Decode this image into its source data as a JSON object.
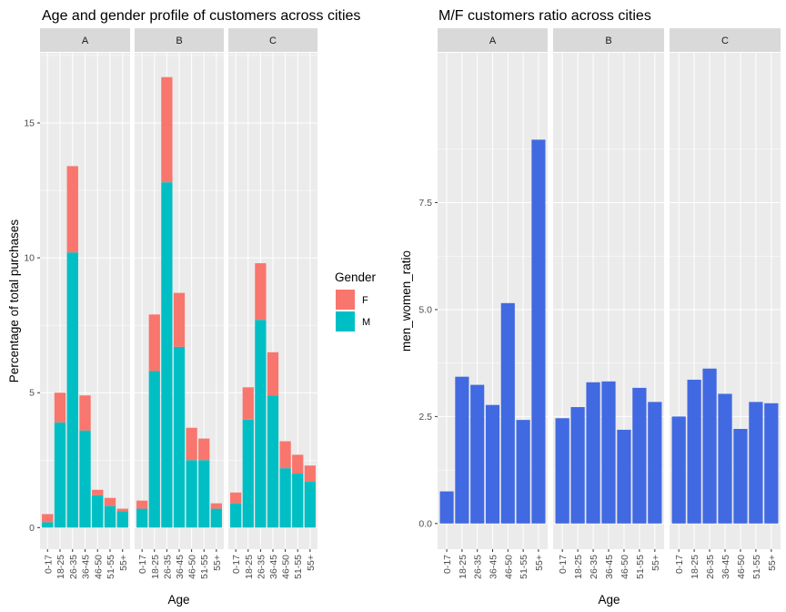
{
  "colors": {
    "female": "#F8766D",
    "male": "#00BFC4",
    "ratio": "#4169E1",
    "panel_bg": "#EBEBEB",
    "strip_bg": "#D9D9D9",
    "grid": "#FFFFFF"
  },
  "chart_data": [
    {
      "type": "bar",
      "stacked": true,
      "title": "Age and gender profile of customers across cities",
      "xlabel": "Age",
      "ylabel": "Percentage of total purchases",
      "ylim": [
        -0.8,
        17.6
      ],
      "yticks": [
        0,
        5,
        10,
        15
      ],
      "ytick_labels": [
        "0",
        "5",
        "10",
        "15"
      ],
      "categories": [
        "0-17",
        "18-25",
        "26-35",
        "36-45",
        "46-50",
        "51-55",
        "55+"
      ],
      "legend": {
        "title": "Gender",
        "position": "right",
        "entries": [
          "F",
          "M"
        ]
      },
      "facets": [
        {
          "label": "A",
          "series": [
            {
              "name": "M",
              "values": [
                0.2,
                3.9,
                10.2,
                3.6,
                1.2,
                0.8,
                0.6
              ]
            },
            {
              "name": "F",
              "values": [
                0.3,
                1.1,
                3.2,
                1.3,
                0.2,
                0.3,
                0.1
              ]
            }
          ]
        },
        {
          "label": "B",
          "series": [
            {
              "name": "M",
              "values": [
                0.7,
                5.8,
                12.8,
                6.7,
                2.5,
                2.5,
                0.7
              ]
            },
            {
              "name": "F",
              "values": [
                0.3,
                2.1,
                3.9,
                2.0,
                1.2,
                0.8,
                0.2
              ]
            }
          ]
        },
        {
          "label": "C",
          "series": [
            {
              "name": "M",
              "values": [
                0.9,
                4.0,
                7.7,
                4.9,
                2.2,
                2.0,
                1.7
              ]
            },
            {
              "name": "F",
              "values": [
                0.4,
                1.2,
                2.1,
                1.6,
                1.0,
                0.7,
                0.6
              ]
            }
          ]
        }
      ]
    },
    {
      "type": "bar",
      "title": "M/F customers ratio across cities",
      "xlabel": "Age",
      "ylabel": "men_women_ratio",
      "ylim": [
        -0.6,
        11.0
      ],
      "yticks": [
        0,
        2.5,
        5,
        7.5
      ],
      "ytick_labels": [
        "0.0",
        "2.5",
        "5.0",
        "7.5"
      ],
      "categories": [
        "0-17",
        "18-25",
        "26-35",
        "36-45",
        "46-50",
        "51-55",
        "55+"
      ],
      "facets": [
        {
          "label": "A",
          "values": [
            0.75,
            3.43,
            3.24,
            2.77,
            5.15,
            2.42,
            8.97
          ]
        },
        {
          "label": "B",
          "values": [
            2.46,
            2.72,
            3.3,
            3.32,
            2.19,
            3.17,
            2.84
          ]
        },
        {
          "label": "C",
          "values": [
            2.5,
            3.36,
            3.62,
            3.03,
            2.21,
            2.84,
            2.81
          ]
        }
      ]
    }
  ]
}
